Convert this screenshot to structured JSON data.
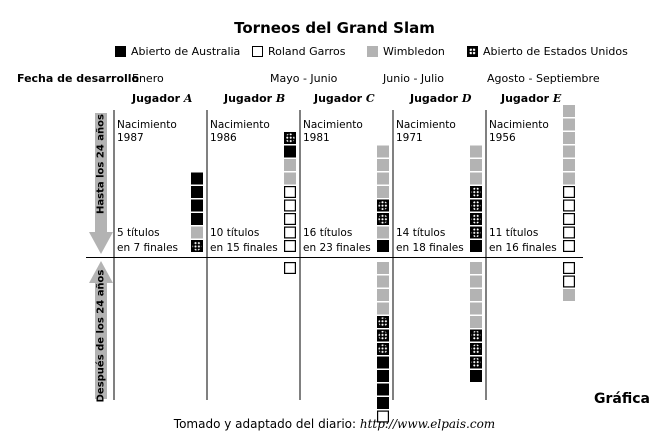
{
  "title": "Torneos del Grand Slam",
  "legend": [
    {
      "label": "Abierto de Australia",
      "type": "black"
    },
    {
      "label": "Roland Garros",
      "type": "white"
    },
    {
      "label": "Wimbledon",
      "type": "gray"
    },
    {
      "label": "Abierto de Estados Unidos",
      "type": "us"
    }
  ],
  "fecha_label": "Fecha de desarrollo",
  "periods": [
    "Enero",
    "Mayo - Junio",
    "Junio - Julio",
    "Agosto - Septiembre"
  ],
  "side_labels": {
    "before": "Hasta los 24 años",
    "after": "Después de los 24 años"
  },
  "players": [
    {
      "label": "Jugador",
      "letter": "A",
      "birth_label": "Nacimiento",
      "birth_year": "1987",
      "titles": "5 títulos",
      "finals": "en 7 finales"
    },
    {
      "label": "Jugador",
      "letter": "B",
      "birth_label": "Nacimiento",
      "birth_year": "1986",
      "titles": "10 títulos",
      "finals": "en 15 finales"
    },
    {
      "label": "Jugador",
      "letter": "C",
      "birth_label": "Nacimiento",
      "birth_year": "1981",
      "titles": "16 títulos",
      "finals": "en 23 finales"
    },
    {
      "label": "Jugador",
      "letter": "D",
      "birth_label": "Nacimiento",
      "birth_year": "1971",
      "titles": "14 títulos",
      "finals": "en 18 finales"
    },
    {
      "label": "Jugador",
      "letter": "E",
      "birth_label": "Nacimiento",
      "birth_year": "1956",
      "titles": "11 títulos",
      "finals": "en 16 finales"
    }
  ],
  "stacks": {
    "before": [
      [
        "black",
        "black",
        "black",
        "black",
        "gray",
        "us"
      ],
      [
        "us",
        "black",
        "gray",
        "gray",
        "white",
        "white",
        "white",
        "white",
        "white"
      ],
      [
        "gray",
        "gray",
        "gray",
        "gray",
        "us",
        "us",
        "gray",
        "black"
      ],
      [
        "gray",
        "gray",
        "gray",
        "us",
        "us",
        "us",
        "us",
        "black"
      ],
      [
        "gray",
        "gray",
        "gray",
        "gray",
        "gray",
        "gray",
        "white",
        "white",
        "white",
        "white",
        "white"
      ]
    ],
    "after": [
      [],
      [
        "white"
      ],
      [
        "gray",
        "gray",
        "gray",
        "gray",
        "us",
        "us",
        "us",
        "black",
        "black",
        "black",
        "black",
        "white"
      ],
      [
        "gray",
        "gray",
        "gray",
        "gray",
        "gray",
        "us",
        "us",
        "us",
        "black"
      ],
      [
        "white",
        "white",
        "gray"
      ]
    ]
  },
  "footer_label": "Gráfica",
  "source_prefix": "Tomado y adaptado del diario:",
  "source_url": "http://www.elpais.com"
}
